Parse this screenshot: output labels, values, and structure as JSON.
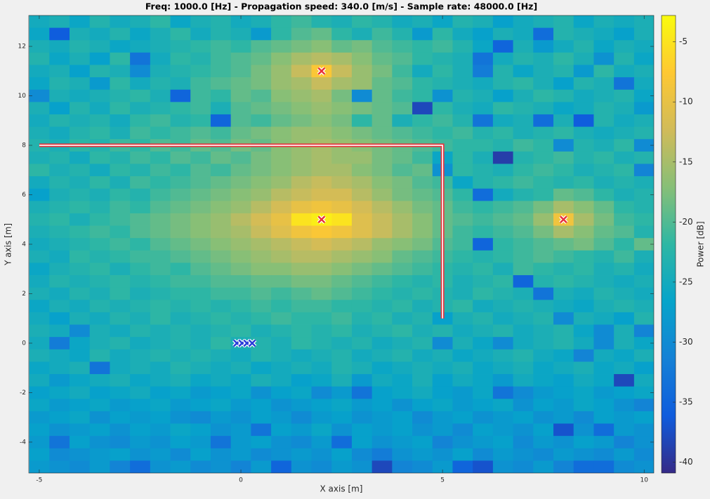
{
  "chart_data": {
    "type": "heatmap",
    "title": "Freq: 1000.0 [Hz] - Propagation speed: 340.0 [m/s] - Sample rate: 48000.0 [Hz]",
    "x_label": "X axis [m]",
    "y_label": "Y axis [m]",
    "colorbar_label": "Power [dB]",
    "xlim": [
      -5.26,
      10.24
    ],
    "ylim": [
      -5.25,
      13.25
    ],
    "clim": [
      -40.9,
      -2.8
    ],
    "xticks": [
      -5,
      0,
      5,
      10
    ],
    "yticks": [
      -4,
      -2,
      0,
      2,
      4,
      6,
      8,
      10,
      12
    ],
    "cticks": [
      -40,
      -35,
      -30,
      -25,
      -20,
      -15,
      -10,
      -5
    ],
    "colormap": [
      "#352a87",
      "#0f5cdd",
      "#1481d6",
      "#06a4ca",
      "#2eb7a4",
      "#87bf77",
      "#d1bb59",
      "#fec832",
      "#f9fb0e"
    ],
    "x": [
      -5,
      -4.5,
      -4,
      -3.5,
      -3,
      -2.5,
      -2,
      -1.5,
      -1,
      -0.5,
      0,
      0.5,
      1,
      1.5,
      2,
      2.5,
      3,
      3.5,
      4,
      4.5,
      5,
      5.5,
      6,
      6.5,
      7,
      7.5,
      8,
      8.5,
      9,
      9.5,
      10
    ],
    "y": [
      13,
      12.5,
      12,
      11.5,
      11,
      10.5,
      10,
      9.5,
      9,
      8.5,
      8,
      7.5,
      7,
      6.5,
      6,
      5.5,
      5,
      4.5,
      4,
      3.5,
      3,
      2.5,
      2,
      1.5,
      1,
      0.5,
      0,
      -0.5,
      -1,
      -1.5,
      -2,
      -2.5,
      -3,
      -3.5,
      -4,
      -4.5,
      -5
    ],
    "z": [
      [
        -25,
        -24,
        -26,
        -23,
        -25,
        -24,
        -22,
        -26,
        -24,
        -23,
        -25,
        -24,
        -22,
        -21,
        -23,
        -24,
        -22,
        -23,
        -25,
        -24,
        -26,
        -23,
        -24,
        -27,
        -25,
        -24,
        -23,
        -26,
        -24,
        -25,
        -24
      ],
      [
        -26,
        -36,
        -24,
        -25,
        -23,
        -26,
        -24,
        -22,
        -25,
        -23,
        -24,
        -28,
        -22,
        -20,
        -19,
        -22,
        -24,
        -21,
        -23,
        -28,
        -22,
        -25,
        -27,
        -24,
        -25,
        -34,
        -23,
        -24,
        -25,
        -27,
        -24
      ],
      [
        -24,
        -25,
        -23,
        -24,
        -26,
        -25,
        -24,
        -23,
        -22,
        -21,
        -22,
        -20,
        -19,
        -18,
        -17,
        -19,
        -18,
        -20,
        -21,
        -22,
        -21,
        -23,
        -26,
        -35,
        -24,
        -28,
        -25,
        -23,
        -26,
        -24,
        -25
      ],
      [
        -23,
        -26,
        -24,
        -27,
        -22,
        -33,
        -25,
        -22,
        -23,
        -21,
        -20,
        -19,
        -17,
        -15,
        -14,
        -15,
        -17,
        -19,
        -20,
        -22,
        -23,
        -24,
        -33,
        -25,
        -23,
        -24,
        -22,
        -24,
        -29,
        -23,
        -26
      ],
      [
        -25,
        -24,
        -27,
        -23,
        -24,
        -30,
        -24,
        -23,
        -22,
        -21,
        -20,
        -18,
        -16,
        -13,
        -8,
        -13,
        -16,
        -18,
        -21,
        -25,
        -22,
        -24,
        -32,
        -23,
        -26,
        -24,
        -23,
        -28,
        -22,
        -25,
        -24
      ],
      [
        -26,
        -23,
        -24,
        -28,
        -22,
        -25,
        -23,
        -24,
        -21,
        -20,
        -19,
        -18,
        -16,
        -15,
        -13,
        -15,
        -16,
        -19,
        -20,
        -22,
        -23,
        -24,
        -25,
        -23,
        -22,
        -24,
        -27,
        -23,
        -24,
        -33,
        -25
      ],
      [
        -30,
        -24,
        -25,
        -24,
        -23,
        -22,
        -24,
        -35,
        -21,
        -22,
        -19,
        -20,
        -17,
        -16,
        -15,
        -18,
        -30,
        -19,
        -21,
        -22,
        -29,
        -23,
        -24,
        -27,
        -24,
        -22,
        -23,
        -25,
        -24,
        -23,
        -26
      ],
      [
        -24,
        -27,
        -23,
        -25,
        -22,
        -24,
        -23,
        -22,
        -21,
        -24,
        -20,
        -19,
        -18,
        -17,
        -16,
        -17,
        -18,
        -19,
        -20,
        -38,
        -22,
        -24,
        -25,
        -22,
        -23,
        -24,
        -26,
        -25,
        -23,
        -24,
        -28
      ],
      [
        -25,
        -23,
        -24,
        -23,
        -25,
        -22,
        -21,
        -23,
        -22,
        -35,
        -20,
        -21,
        -19,
        -18,
        -17,
        -18,
        -22,
        -19,
        -24,
        -22,
        -21,
        -23,
        -33,
        -25,
        -24,
        -34,
        -24,
        -36,
        -23,
        -25,
        -24
      ],
      [
        -24,
        -25,
        -23,
        -22,
        -24,
        -21,
        -22,
        -21,
        -20,
        -21,
        -19,
        -18,
        -17,
        -16,
        -16,
        -17,
        -18,
        -19,
        -20,
        -21,
        -22,
        -21,
        -23,
        -22,
        -24,
        -23,
        -22,
        -24,
        -25,
        -24,
        -23
      ],
      [
        -23,
        -24,
        -22,
        -23,
        -21,
        -22,
        -20,
        -21,
        -19,
        -20,
        -18,
        -19,
        -17,
        -16,
        -15,
        -16,
        -17,
        -18,
        -19,
        -20,
        -21,
        -22,
        -22,
        -23,
        -21,
        -22,
        -30,
        -23,
        -24,
        -22,
        -30
      ],
      [
        -24,
        -23,
        -25,
        -22,
        -23,
        -21,
        -22,
        -20,
        -21,
        -19,
        -20,
        -18,
        -17,
        -16,
        -15,
        -16,
        -16,
        -18,
        -19,
        -21,
        -26,
        -22,
        -24,
        -39,
        -23,
        -22,
        -21,
        -23,
        -22,
        -24,
        -23
      ],
      [
        -22,
        -24,
        -23,
        -25,
        -22,
        -23,
        -21,
        -22,
        -20,
        -21,
        -19,
        -18,
        -17,
        -16,
        -15,
        -15,
        -17,
        -18,
        -20,
        -19,
        -29,
        -22,
        -23,
        -24,
        -22,
        -21,
        -22,
        -24,
        -23,
        -22,
        -31
      ],
      [
        -25,
        -23,
        -24,
        -22,
        -24,
        -21,
        -22,
        -21,
        -20,
        -19,
        -18,
        -17,
        -16,
        -14,
        -13,
        -14,
        -15,
        -17,
        -18,
        -20,
        -21,
        -26,
        -23,
        -22,
        -21,
        -22,
        -23,
        -22,
        -24,
        -23,
        -24
      ],
      [
        -27,
        -24,
        -23,
        -24,
        -22,
        -23,
        -21,
        -20,
        -19,
        -18,
        -17,
        -16,
        -14,
        -13,
        -12,
        -12,
        -14,
        -16,
        -18,
        -19,
        -20,
        -22,
        -34,
        -25,
        -23,
        -22,
        -19,
        -20,
        -22,
        -24,
        -23
      ],
      [
        -24,
        -23,
        -22,
        -23,
        -21,
        -22,
        -20,
        -19,
        -18,
        -17,
        -16,
        -14,
        -12,
        -10,
        -9,
        -10,
        -12,
        -14,
        -16,
        -18,
        -19,
        -21,
        -22,
        -21,
        -20,
        -18,
        -15,
        -17,
        -19,
        -22,
        -23
      ],
      [
        -23,
        -22,
        -24,
        -22,
        -21,
        -20,
        -19,
        -18,
        -17,
        -16,
        -14,
        -12,
        -10,
        -5,
        -4,
        -5,
        -11,
        -13,
        -15,
        -17,
        -19,
        -20,
        -21,
        -20,
        -19,
        -16,
        -9,
        -15,
        -18,
        -21,
        -22
      ],
      [
        -24,
        -23,
        -22,
        -21,
        -22,
        -20,
        -19,
        -18,
        -17,
        -16,
        -15,
        -13,
        -11,
        -9,
        -8,
        -9,
        -11,
        -13,
        -15,
        -17,
        -19,
        -21,
        -22,
        -21,
        -20,
        -18,
        -15,
        -17,
        -19,
        -20,
        -23
      ],
      [
        -25,
        -24,
        -23,
        -22,
        -21,
        -22,
        -20,
        -19,
        -18,
        -17,
        -16,
        -15,
        -14,
        -13,
        -12,
        -13,
        -14,
        -16,
        -17,
        -18,
        -20,
        -21,
        -35,
        -22,
        -21,
        -20,
        -19,
        -18,
        -20,
        -22,
        -19
      ],
      [
        -24,
        -25,
        -22,
        -23,
        -22,
        -21,
        -21,
        -20,
        -19,
        -18,
        -17,
        -16,
        -15,
        -14,
        -14,
        -15,
        -16,
        -17,
        -19,
        -20,
        -21,
        -22,
        -23,
        -22,
        -21,
        -20,
        -21,
        -22,
        -23,
        -21,
        -24
      ],
      [
        -26,
        -24,
        -23,
        -22,
        -24,
        -22,
        -21,
        -22,
        -20,
        -19,
        -18,
        -17,
        -17,
        -16,
        -16,
        -17,
        -18,
        -19,
        -20,
        -21,
        -22,
        -23,
        -22,
        -24,
        -21,
        -22,
        -23,
        -22,
        -24,
        -23,
        -25
      ],
      [
        -25,
        -23,
        -24,
        -23,
        -22,
        -23,
        -22,
        -21,
        -21,
        -20,
        -20,
        -19,
        -19,
        -18,
        -18,
        -19,
        -20,
        -21,
        -22,
        -23,
        -22,
        -24,
        -23,
        -22,
        -35,
        -23,
        -22,
        -23,
        -24,
        -25,
        -24
      ],
      [
        -24,
        -25,
        -23,
        -24,
        -22,
        -24,
        -23,
        -22,
        -22,
        -21,
        -21,
        -20,
        -21,
        -20,
        -19,
        -20,
        -21,
        -22,
        -23,
        -22,
        -23,
        -24,
        -22,
        -23,
        -24,
        -33,
        -24,
        -25,
        -23,
        -24,
        -25
      ],
      [
        -26,
        -24,
        -25,
        -23,
        -24,
        -23,
        -22,
        -23,
        -22,
        -23,
        -22,
        -21,
        -22,
        -21,
        -21,
        -22,
        -22,
        -23,
        -22,
        -24,
        -23,
        -22,
        -25,
        -24,
        -23,
        -24,
        -25,
        -26,
        -24,
        -23,
        -24
      ],
      [
        -25,
        -27,
        -24,
        -25,
        -23,
        -24,
        -22,
        -24,
        -23,
        -22,
        -23,
        -22,
        -21,
        -22,
        -22,
        -21,
        -23,
        -22,
        -24,
        -23,
        -27,
        -24,
        -23,
        -25,
        -24,
        -23,
        -30,
        -24,
        -25,
        -27,
        -23
      ],
      [
        -24,
        -25,
        -30,
        -24,
        -25,
        -23,
        -24,
        -23,
        -24,
        -23,
        -22,
        -24,
        -23,
        -22,
        -23,
        -22,
        -24,
        -23,
        -22,
        -24,
        -23,
        -25,
        -24,
        -23,
        -25,
        -24,
        -23,
        -26,
        -30,
        -24,
        -31
      ],
      [
        -25,
        -32,
        -26,
        -24,
        -23,
        -25,
        -24,
        -23,
        -24,
        -22,
        -24,
        -23,
        -24,
        -22,
        -23,
        -24,
        -23,
        -25,
        -24,
        -23,
        -30,
        -24,
        -26,
        -30,
        -25,
        -24,
        -23,
        -25,
        -30,
        -24,
        -26
      ],
      [
        -24,
        -25,
        -26,
        -23,
        -25,
        -24,
        -23,
        -24,
        -23,
        -24,
        -25,
        -23,
        -24,
        -25,
        -24,
        -23,
        -25,
        -24,
        -23,
        -25,
        -24,
        -26,
        -25,
        -24,
        -23,
        -25,
        -26,
        -31,
        -25,
        -26,
        -24
      ],
      [
        -26,
        -25,
        -24,
        -33,
        -25,
        -24,
        -25,
        -23,
        -24,
        -25,
        -24,
        -26,
        -25,
        -24,
        -25,
        -23,
        -24,
        -26,
        -25,
        -24,
        -25,
        -24,
        -26,
        -25,
        -24,
        -26,
        -25,
        -24,
        -26,
        -25,
        -27
      ],
      [
        -25,
        -28,
        -26,
        -25,
        -24,
        -26,
        -25,
        -24,
        -26,
        -25,
        -26,
        -24,
        -25,
        -27,
        -26,
        -24,
        -28,
        -25,
        -26,
        -24,
        -27,
        -25,
        -26,
        -28,
        -25,
        -26,
        -27,
        -25,
        -26,
        -38,
        -25
      ],
      [
        -27,
        -26,
        -25,
        -27,
        -26,
        -25,
        -27,
        -26,
        -28,
        -27,
        -26,
        -29,
        -27,
        -26,
        -30,
        -28,
        -33,
        -27,
        -26,
        -25,
        -27,
        -28,
        -26,
        -33,
        -30,
        -28,
        -27,
        -26,
        -28,
        -27,
        -26
      ],
      [
        -26,
        -28,
        -27,
        -26,
        -28,
        -27,
        -26,
        -28,
        -27,
        -26,
        -28,
        -27,
        -29,
        -28,
        -27,
        -26,
        -28,
        -27,
        -29,
        -27,
        -26,
        -28,
        -27,
        -26,
        -29,
        -27,
        -28,
        -26,
        -27,
        -29,
        -31
      ],
      [
        -28,
        -27,
        -26,
        -29,
        -27,
        -28,
        -27,
        -29,
        -30,
        -28,
        -29,
        -27,
        -28,
        -30,
        -28,
        -27,
        -29,
        -28,
        -27,
        -30,
        -28,
        -27,
        -29,
        -28,
        -27,
        -29,
        -28,
        -30,
        -27,
        -28,
        -27
      ],
      [
        -27,
        -29,
        -28,
        -27,
        -29,
        -27,
        -28,
        -26,
        -27,
        -29,
        -28,
        -33,
        -27,
        -28,
        -26,
        -29,
        -27,
        -28,
        -27,
        -29,
        -28,
        -30,
        -27,
        -28,
        -29,
        -27,
        -37,
        -29,
        -34,
        -28,
        -29
      ],
      [
        -28,
        -33,
        -27,
        -29,
        -30,
        -28,
        -29,
        -27,
        -28,
        -33,
        -28,
        -27,
        -29,
        -30,
        -28,
        -34,
        -27,
        -29,
        -28,
        -27,
        -31,
        -29,
        -28,
        -27,
        -30,
        -28,
        -29,
        -27,
        -28,
        -31,
        -29
      ],
      [
        -27,
        -30,
        -29,
        -28,
        -27,
        -29,
        -28,
        -30,
        -27,
        -29,
        -28,
        -30,
        -29,
        -28,
        -29,
        -27,
        -30,
        -32,
        -29,
        -28,
        -29,
        -27,
        -30,
        -28,
        -29,
        -30,
        -28,
        -29,
        -30,
        -28,
        -30
      ],
      [
        -28,
        -29,
        -30,
        -28,
        -31,
        -34,
        -29,
        -28,
        -30,
        -29,
        -31,
        -28,
        -35,
        -29,
        -30,
        -28,
        -29,
        -38,
        -31,
        -30,
        -28,
        -35,
        -37,
        -29,
        -30,
        -28,
        -31,
        -34,
        -34,
        -30,
        -29
      ]
    ],
    "walls": {
      "x": [
        -5,
        5,
        5
      ],
      "y": [
        8,
        8,
        1
      ],
      "color": "#e8323c"
    },
    "sources": {
      "x": [
        2,
        2,
        8
      ],
      "y": [
        11,
        5,
        5
      ],
      "color": "#e8323c"
    },
    "microphones": {
      "x": [
        -0.1,
        0.03,
        0.15,
        0.28
      ],
      "y": [
        0,
        0,
        0,
        0
      ],
      "color": "#2a3fd8"
    }
  }
}
